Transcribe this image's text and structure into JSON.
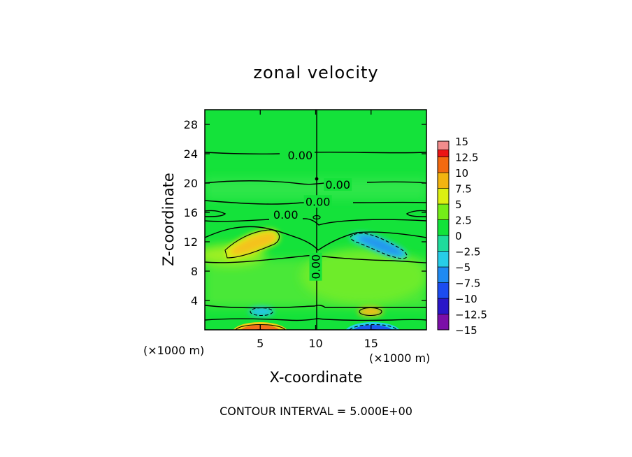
{
  "chart_data": {
    "type": "heatmap",
    "title": "zonal velocity",
    "xlabel": "X-coordinate",
    "ylabel": "Z-coordinate",
    "x_unit_label": "(×1000 m)",
    "z_unit_label": "(×1000 m)",
    "xlim": [
      0,
      20
    ],
    "ylim": [
      0,
      30
    ],
    "x_ticks": [
      5,
      10,
      15
    ],
    "x_tick_labels": [
      "5",
      "10",
      "15"
    ],
    "y_ticks": [
      4,
      8,
      12,
      16,
      20,
      24,
      28
    ],
    "y_tick_labels": [
      "4",
      "8",
      "12",
      "16",
      "20",
      "24",
      "28"
    ],
    "contour_interval_text": "CONTOUR INTERVAL = 5.000E+00",
    "colorbar": {
      "levels": [
        -15,
        -12.5,
        -10,
        -7.5,
        -5,
        -2.5,
        0,
        2.5,
        5,
        7.5,
        10,
        12.5,
        15
      ],
      "labels": [
        "-15",
        "-12.5",
        "-10",
        "-7.5",
        "-5",
        "-2.5",
        "0",
        "2.5",
        "5",
        "7.5",
        "10",
        "12.5",
        "15"
      ],
      "colors": [
        "#7b0fa8",
        "#2a16c8",
        "#1c4cf0",
        "#1f8af2",
        "#27cde8",
        "#1fdc9c",
        "#12e23a",
        "#74ee18",
        "#dcf012",
        "#f3b410",
        "#f36a10",
        "#ec1414",
        "#f28c8c"
      ]
    },
    "contour_labels": [
      {
        "text": "0.00",
        "x": 8.6,
        "z": 23.8
      },
      {
        "text": "0.00",
        "x": 12.0,
        "z": 19.8
      },
      {
        "text": "0.00",
        "x": 10.2,
        "z": 17.5
      },
      {
        "text": "0.00",
        "x": 7.3,
        "z": 15.7
      },
      {
        "text": "0.00",
        "x": 10.0,
        "z": 8.6
      }
    ],
    "features": [
      {
        "sign": "positive",
        "level": 5,
        "x_center": 3.8,
        "z_center": 11.5
      },
      {
        "sign": "negative",
        "level": -5,
        "x_center": 15.9,
        "z_center": 11.5
      },
      {
        "sign": "negative",
        "level": -5,
        "x_center": 5.1,
        "z_center": 2.2
      },
      {
        "sign": "positive",
        "level": 5,
        "x_center": 14.9,
        "z_center": 2.2
      },
      {
        "sign": "positive",
        "level": 10,
        "x_center": 5.0,
        "z_center": 0.2
      },
      {
        "sign": "negative",
        "level": -10,
        "x_center": 15.0,
        "z_center": 0.2
      }
    ]
  }
}
